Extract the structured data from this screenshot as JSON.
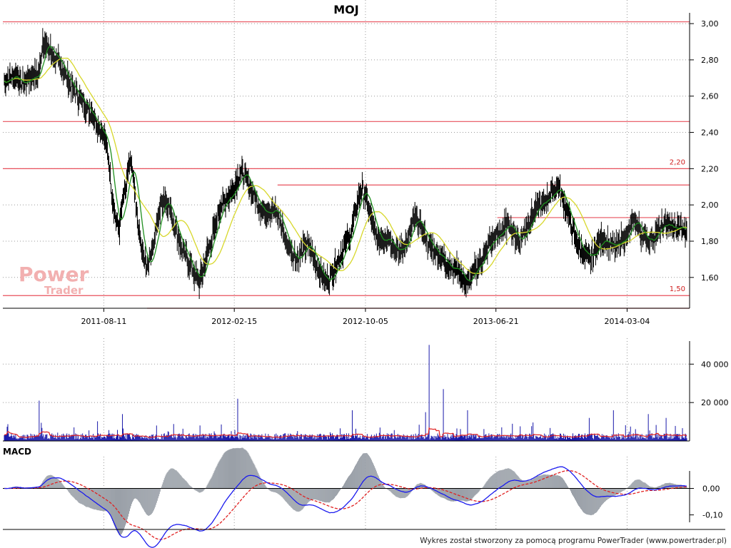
{
  "chart_data": [
    {
      "panel": "price",
      "type": "ohlc",
      "title": "MOJ",
      "ylim": [
        1.43,
        3.02
      ],
      "y_ticks": [
        1.6,
        1.8,
        2.0,
        2.2,
        2.4,
        2.6,
        2.8,
        3.0
      ],
      "y_tick_labels": [
        "1,60",
        "1,80",
        "2,00",
        "2,20",
        "2,40",
        "2,60",
        "2,80",
        "3,00"
      ],
      "x_tick_labels": [
        "2011-08-11",
        "2012-02-15",
        "2012-10-05",
        "2013-06-21",
        "2014-03-04"
      ],
      "grid": true,
      "close_series": [
        [
          0,
          2.68
        ],
        [
          3,
          2.72
        ],
        [
          5,
          2.66
        ],
        [
          7,
          2.7
        ],
        [
          10,
          2.72
        ],
        [
          11,
          2.9
        ],
        [
          13,
          2.86
        ],
        [
          15,
          2.8
        ],
        [
          17,
          2.74
        ],
        [
          19,
          2.66
        ],
        [
          21,
          2.6
        ],
        [
          23,
          2.56
        ],
        [
          25,
          2.5
        ],
        [
          27,
          2.44
        ],
        [
          29,
          2.36
        ],
        [
          30,
          2.26
        ],
        [
          31,
          2.04
        ],
        [
          32,
          1.92
        ],
        [
          33,
          1.86
        ],
        [
          34,
          2.02
        ],
        [
          35,
          2.1
        ],
        [
          36,
          2.22
        ],
        [
          37,
          2.18
        ],
        [
          38,
          1.95
        ],
        [
          39,
          1.82
        ],
        [
          40,
          1.7
        ],
        [
          41,
          1.66
        ],
        [
          42,
          1.72
        ],
        [
          43,
          1.8
        ],
        [
          44,
          1.9
        ],
        [
          45,
          2.0
        ],
        [
          46,
          2.04
        ],
        [
          47,
          2.0
        ],
        [
          48,
          1.95
        ],
        [
          49,
          1.88
        ],
        [
          50,
          1.82
        ],
        [
          51,
          1.76
        ],
        [
          52,
          1.72
        ],
        [
          53,
          1.68
        ],
        [
          54,
          1.64
        ],
        [
          55,
          1.6
        ],
        [
          56,
          1.58
        ],
        [
          57,
          1.64
        ],
        [
          58,
          1.72
        ],
        [
          59,
          1.78
        ],
        [
          60,
          1.84
        ],
        [
          61,
          1.92
        ],
        [
          62,
          1.98
        ],
        [
          63,
          2.02
        ],
        [
          64,
          2.04
        ],
        [
          65,
          2.06
        ],
        [
          66,
          2.1
        ],
        [
          67,
          2.14
        ],
        [
          68,
          2.18
        ],
        [
          69,
          2.16
        ],
        [
          70,
          2.12
        ],
        [
          71,
          2.08
        ],
        [
          72,
          2.04
        ],
        [
          73,
          2.0
        ],
        [
          74,
          1.98
        ],
        [
          75,
          1.96
        ],
        [
          76,
          1.97
        ],
        [
          77,
          1.98
        ],
        [
          78,
          1.96
        ],
        [
          79,
          1.92
        ],
        [
          80,
          1.86
        ],
        [
          81,
          1.8
        ],
        [
          82,
          1.76
        ],
        [
          83,
          1.72
        ],
        [
          84,
          1.7
        ],
        [
          85,
          1.72
        ],
        [
          86,
          1.76
        ],
        [
          87,
          1.78
        ],
        [
          88,
          1.75
        ],
        [
          89,
          1.7
        ],
        [
          90,
          1.66
        ],
        [
          91,
          1.62
        ],
        [
          92,
          1.58
        ],
        [
          93,
          1.58
        ],
        [
          94,
          1.62
        ],
        [
          95,
          1.66
        ],
        [
          96,
          1.7
        ],
        [
          97,
          1.74
        ],
        [
          98,
          1.78
        ],
        [
          99,
          1.82
        ],
        [
          100,
          1.88
        ],
        [
          101,
          1.98
        ],
        [
          102,
          2.06
        ],
        [
          103,
          2.08
        ],
        [
          104,
          2.04
        ],
        [
          105,
          1.96
        ],
        [
          106,
          1.88
        ],
        [
          107,
          1.82
        ],
        [
          108,
          1.8
        ],
        [
          109,
          1.82
        ],
        [
          110,
          1.84
        ],
        [
          111,
          1.8
        ],
        [
          112,
          1.76
        ],
        [
          113,
          1.74
        ],
        [
          114,
          1.76
        ],
        [
          115,
          1.78
        ],
        [
          116,
          1.82
        ],
        [
          117,
          1.88
        ],
        [
          118,
          1.92
        ],
        [
          119,
          1.9
        ],
        [
          120,
          1.86
        ],
        [
          121,
          1.82
        ],
        [
          122,
          1.78
        ],
        [
          123,
          1.76
        ],
        [
          124,
          1.74
        ],
        [
          125,
          1.72
        ],
        [
          126,
          1.7
        ],
        [
          127,
          1.68
        ],
        [
          128,
          1.66
        ],
        [
          129,
          1.64
        ],
        [
          130,
          1.66
        ],
        [
          131,
          1.62
        ],
        [
          132,
          1.58
        ],
        [
          133,
          1.56
        ],
        [
          134,
          1.6
        ],
        [
          135,
          1.64
        ],
        [
          136,
          1.66
        ],
        [
          137,
          1.7
        ],
        [
          138,
          1.74
        ],
        [
          139,
          1.78
        ],
        [
          140,
          1.8
        ],
        [
          141,
          1.82
        ],
        [
          142,
          1.84
        ],
        [
          143,
          1.86
        ],
        [
          144,
          1.88
        ],
        [
          145,
          1.9
        ],
        [
          146,
          1.86
        ],
        [
          147,
          1.82
        ],
        [
          148,
          1.8
        ],
        [
          149,
          1.84
        ],
        [
          150,
          1.88
        ],
        [
          151,
          1.92
        ],
        [
          152,
          1.96
        ],
        [
          153,
          1.98
        ],
        [
          154,
          2.0
        ],
        [
          155,
          2.02
        ],
        [
          156,
          2.04
        ],
        [
          157,
          2.06
        ],
        [
          158,
          2.08
        ],
        [
          159,
          2.1
        ],
        [
          160,
          2.06
        ],
        [
          161,
          2.0
        ],
        [
          162,
          1.94
        ],
        [
          163,
          1.88
        ],
        [
          164,
          1.82
        ],
        [
          165,
          1.78
        ],
        [
          166,
          1.74
        ],
        [
          167,
          1.72
        ],
        [
          168,
          1.7
        ],
        [
          169,
          1.72
        ],
        [
          170,
          1.76
        ],
        [
          171,
          1.8
        ],
        [
          172,
          1.82
        ],
        [
          173,
          1.8
        ],
        [
          174,
          1.78
        ],
        [
          175,
          1.76
        ],
        [
          176,
          1.78
        ],
        [
          177,
          1.8
        ],
        [
          178,
          1.82
        ],
        [
          179,
          1.84
        ],
        [
          180,
          1.88
        ],
        [
          181,
          1.92
        ],
        [
          182,
          1.88
        ],
        [
          183,
          1.84
        ],
        [
          184,
          1.82
        ],
        [
          185,
          1.8
        ],
        [
          186,
          1.82
        ],
        [
          187,
          1.84
        ],
        [
          188,
          1.86
        ],
        [
          189,
          1.88
        ],
        [
          190,
          1.9
        ],
        [
          191,
          1.88
        ],
        [
          192,
          1.86
        ],
        [
          193,
          1.87
        ],
        [
          194,
          1.88
        ],
        [
          195,
          1.86
        ],
        [
          196,
          1.85
        ]
      ],
      "hlines": [
        {
          "y": 3.01,
          "x0": 0,
          "x1": 1,
          "color": "#e8505c"
        },
        {
          "y": 2.46,
          "x0": 0,
          "x1": 1,
          "color": "#e8505c"
        },
        {
          "y": 2.2,
          "x0": 0,
          "x1": 1,
          "color": "#e8505c",
          "label": "2,20"
        },
        {
          "y": 2.11,
          "x0": 0.4,
          "x1": 1,
          "color": "#e8505c"
        },
        {
          "y": 1.93,
          "x0": 0.72,
          "x1": 1,
          "color": "#e8505c"
        },
        {
          "y": 1.5,
          "x0": 0,
          "x1": 1,
          "color": "#e8505c",
          "label": "1,50"
        },
        {
          "y": 1.43,
          "x0": 0.21,
          "x1": 1,
          "color": "#e8505c"
        }
      ],
      "ma_short_color": "#1f8f1f",
      "ma_long_color": "#d7d72a",
      "bar_color": "#000000",
      "watermark": {
        "line1": "Power",
        "line2": "Trader",
        "color": "#f2b0b0"
      }
    },
    {
      "panel": "volume",
      "type": "bar",
      "ylim": [
        0,
        52000
      ],
      "y_ticks": [
        20000,
        40000
      ],
      "y_tick_labels": [
        "20 000",
        "40 000"
      ],
      "bar_color": "#1a1aaa",
      "avg_color": "#e02020",
      "spikes": [
        [
          10,
          21000
        ],
        [
          34,
          14000
        ],
        [
          67,
          22000
        ],
        [
          100,
          16000
        ],
        [
          121,
          15000
        ],
        [
          122,
          50000
        ],
        [
          126,
          27000
        ],
        [
          133,
          16000
        ],
        [
          168,
          12000
        ],
        [
          175,
          16000
        ],
        [
          185,
          14000
        ],
        [
          190,
          12000
        ]
      ]
    },
    {
      "panel": "macd",
      "type": "line",
      "label": "MACD",
      "ylim": [
        -0.155,
        0.12
      ],
      "y_ticks": [
        0.0,
        -0.1
      ],
      "y_tick_labels": [
        "0,00",
        "-0,10"
      ],
      "macd_color": "#1a1aee",
      "signal_color": "#e02020",
      "hist_color": "#9aa0a8"
    }
  ],
  "footer": {
    "credit": "Wykres został stworzony za pomocą programu PowerTrader (www.powertrader.pl)"
  }
}
